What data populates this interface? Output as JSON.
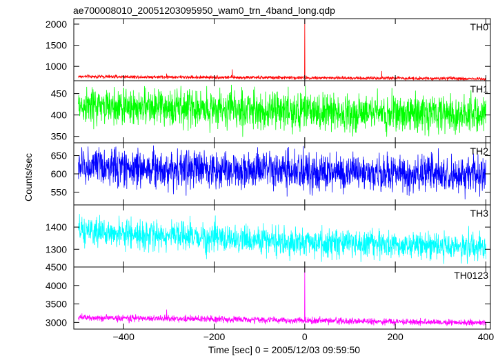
{
  "chart_data": {
    "type": "line",
    "title": "ae700008010_20051203095950_wam0_trn_4band_long.qdp",
    "xlabel": "Time [sec] 0 = 2005/12/03 09:59:50",
    "ylabel": "Counts/sec",
    "xlim": [
      -510,
      410
    ],
    "x_ticks": [
      -400,
      -200,
      0,
      200,
      400
    ],
    "x_tick_labels": [
      "−400",
      "−200",
      "0",
      "200",
      "400"
    ],
    "grid": false,
    "panels": [
      {
        "name": "TH0",
        "color": "#ff0000",
        "ylim": [
          660,
          2130
        ],
        "y_ticks": [
          1000,
          1500,
          2000
        ],
        "y_tick_labels": [
          "1000",
          "1500",
          "2000"
        ],
        "baseline": [
          [
            -500,
            760
          ],
          [
            -200,
            740
          ],
          [
            0,
            730
          ],
          [
            200,
            720
          ],
          [
            400,
            705
          ]
        ],
        "noise": 20,
        "spikes": [
          [
            -305,
            830
          ],
          [
            -160,
            930
          ],
          [
            0,
            2130
          ],
          [
            170,
            890
          ]
        ]
      },
      {
        "name": "TH1",
        "color": "#00ff00",
        "ylim": [
          335,
          480
        ],
        "y_ticks": [
          350,
          400,
          450
        ],
        "y_tick_labels": [
          "350",
          "400",
          "450"
        ],
        "baseline": [
          [
            -500,
            420
          ],
          [
            -200,
            415
          ],
          [
            0,
            408
          ],
          [
            200,
            405
          ],
          [
            400,
            403
          ]
        ],
        "noise": 22,
        "spikes": []
      },
      {
        "name": "TH2",
        "color": "#0000ff",
        "ylim": [
          515,
          685
        ],
        "y_ticks": [
          550,
          600,
          650
        ],
        "y_tick_labels": [
          "550",
          "600",
          "650"
        ],
        "baseline": [
          [
            -500,
            620
          ],
          [
            -200,
            612
          ],
          [
            0,
            605
          ],
          [
            200,
            600
          ],
          [
            400,
            598
          ]
        ],
        "noise": 26,
        "spikes": []
      },
      {
        "name": "TH3",
        "color": "#00ffff",
        "ylim": [
          1220,
          1500
        ],
        "y_ticks": [
          1300,
          1400
        ],
        "y_tick_labels": [
          "1300",
          "1400"
        ],
        "baseline": [
          [
            -500,
            1380
          ],
          [
            -200,
            1350
          ],
          [
            0,
            1330
          ],
          [
            200,
            1320
          ],
          [
            400,
            1310
          ]
        ],
        "noise": 32,
        "spikes": []
      },
      {
        "name": "TH0123",
        "color": "#ff00ff",
        "ylim": [
          2820,
          4500
        ],
        "y_ticks": [
          3000,
          3500,
          4000,
          4500
        ],
        "y_tick_labels": [
          "3000",
          "3500",
          "4000",
          "4500"
        ],
        "baseline": [
          [
            -500,
            3130
          ],
          [
            -200,
            3090
          ],
          [
            0,
            3050
          ],
          [
            200,
            3020
          ],
          [
            400,
            2990
          ]
        ],
        "noise": 45,
        "spikes": [
          [
            -305,
            3350
          ],
          [
            0,
            4500
          ]
        ]
      }
    ]
  }
}
